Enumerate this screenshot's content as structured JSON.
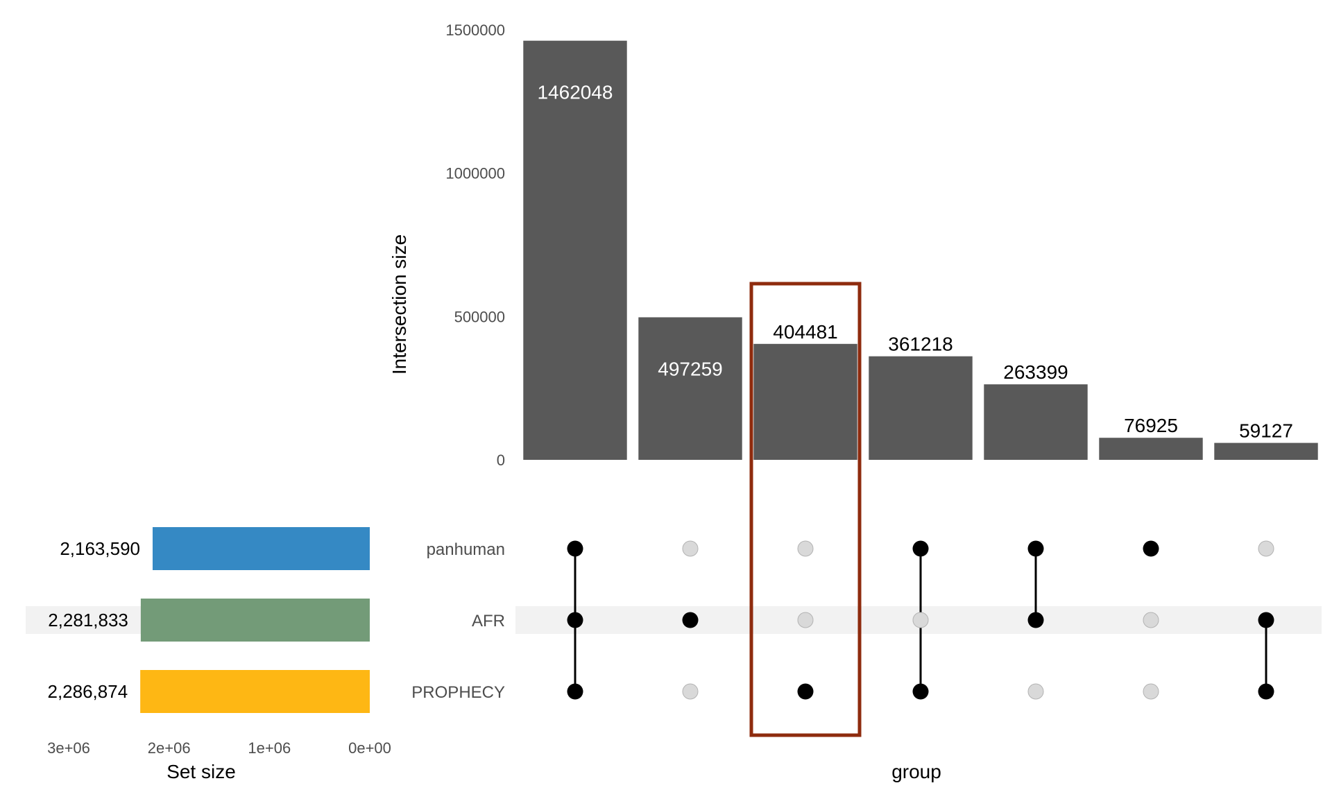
{
  "chart_data": {
    "type": "bar",
    "subtype": "upset",
    "ylabel": "Intersection size",
    "xlabel": "group",
    "set_size_label": "Set size",
    "ylim": [
      0,
      1500000
    ],
    "yticks": [
      {
        "value": 0,
        "label": "0"
      },
      {
        "value": 500000,
        "label": "500000"
      },
      {
        "value": 1000000,
        "label": "1000000"
      },
      {
        "value": 1500000,
        "label": "1500000"
      }
    ],
    "sets": [
      "panhuman",
      "AFR",
      "PROPHECY"
    ],
    "set_sizes": [
      {
        "set": "panhuman",
        "value": 2163590,
        "label": "2,163,590",
        "color": "#3589C4"
      },
      {
        "set": "AFR",
        "value": 2281833,
        "label": "2,281,833",
        "color": "#739B78"
      },
      {
        "set": "PROPHECY",
        "value": 2286874,
        "label": "2,286,874",
        "color": "#FEB714"
      }
    ],
    "set_size_xlim": [
      3000000,
      0
    ],
    "set_size_ticks": [
      {
        "value": 3000000,
        "label": "3e+06"
      },
      {
        "value": 2000000,
        "label": "2e+06"
      },
      {
        "value": 1000000,
        "label": "1e+06"
      },
      {
        "value": 0,
        "label": "0e+00"
      }
    ],
    "intersections": [
      {
        "value": 1462048,
        "label": "1462048",
        "members": [
          1,
          1,
          1
        ]
      },
      {
        "value": 497259,
        "label": "497259",
        "members": [
          0,
          1,
          0
        ]
      },
      {
        "value": 404481,
        "label": "404481",
        "members": [
          0,
          0,
          1
        ]
      },
      {
        "value": 361218,
        "label": "361218",
        "members": [
          1,
          0,
          1
        ]
      },
      {
        "value": 263399,
        "label": "263399",
        "members": [
          1,
          1,
          0
        ]
      },
      {
        "value": 76925,
        "label": "76925",
        "members": [
          1,
          0,
          0
        ]
      },
      {
        "value": 59127,
        "label": "59127",
        "members": [
          0,
          1,
          1
        ]
      }
    ],
    "highlighted_intersection": 2,
    "highlighted_set_row": 1,
    "colors": {
      "bar": "#595959",
      "dot_on": "#000000",
      "dot_off": "#d9d9d9",
      "dot_off_stroke": "#b3b3b3",
      "highlight_box": "#8E2B0E",
      "row_band": "#f2f2f2",
      "label_inside": "#ffffff",
      "label_outside": "#000000"
    }
  }
}
